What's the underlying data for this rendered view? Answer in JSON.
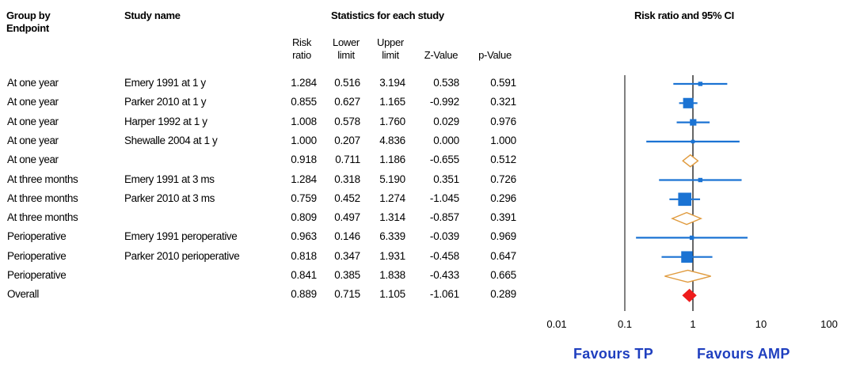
{
  "headers": {
    "group_line1": "Group by",
    "group_line2": "Endpoint",
    "study": "Study name",
    "stats": "Statistics for each study",
    "plot": "Risk ratio and 95% CI"
  },
  "subheaders": {
    "rr1": "Risk",
    "rr2": "ratio",
    "ll1": "Lower",
    "ll2": "limit",
    "ul1": "Upper",
    "ul2": "limit",
    "z": "Z-Value",
    "p": "p-Value"
  },
  "rows": [
    {
      "group": "At one year",
      "study": "Emery 1991 at 1 y",
      "rr": "1.284",
      "lower": "0.516",
      "upper": "3.194",
      "z": "0.538",
      "p": "0.591"
    },
    {
      "group": "At one year",
      "study": "Parker 2010 at 1 y",
      "rr": "0.855",
      "lower": "0.627",
      "upper": "1.165",
      "z": "-0.992",
      "p": "0.321"
    },
    {
      "group": "At one year",
      "study": "Harper 1992 at 1 y",
      "rr": "1.008",
      "lower": "0.578",
      "upper": "1.760",
      "z": "0.029",
      "p": "0.976"
    },
    {
      "group": "At one year",
      "study": "Shewalle 2004 at 1 y",
      "rr": "1.000",
      "lower": "0.207",
      "upper": "4.836",
      "z": "0.000",
      "p": "1.000"
    },
    {
      "group": "At one year",
      "study": "",
      "rr": "0.918",
      "lower": "0.711",
      "upper": "1.186",
      "z": "-0.655",
      "p": "0.512"
    },
    {
      "group": "At three months",
      "study": "Emery 1991 at 3 ms",
      "rr": "1.284",
      "lower": "0.318",
      "upper": "5.190",
      "z": "0.351",
      "p": "0.726"
    },
    {
      "group": "At three months",
      "study": "Parker 2010 at 3 ms",
      "rr": "0.759",
      "lower": "0.452",
      "upper": "1.274",
      "z": "-1.045",
      "p": "0.296"
    },
    {
      "group": "At three months",
      "study": "",
      "rr": "0.809",
      "lower": "0.497",
      "upper": "1.314",
      "z": "-0.857",
      "p": "0.391"
    },
    {
      "group": "Perioperative",
      "study": "Emery 1991 peroperative",
      "rr": "0.963",
      "lower": "0.146",
      "upper": "6.339",
      "z": "-0.039",
      "p": "0.969"
    },
    {
      "group": "Perioperative",
      "study": "Parker 2010 perioperative",
      "rr": "0.818",
      "lower": "0.347",
      "upper": "1.931",
      "z": "-0.458",
      "p": "0.647"
    },
    {
      "group": "Perioperative",
      "study": "",
      "rr": "0.841",
      "lower": "0.385",
      "upper": "1.838",
      "z": "-0.433",
      "p": "0.665"
    },
    {
      "group": "Overall",
      "study": "",
      "rr": "0.889",
      "lower": "0.715",
      "upper": "1.105",
      "z": "-1.061",
      "p": "0.289"
    }
  ],
  "chart_data": {
    "type": "scatter",
    "subtype": "forest-plot",
    "title": "Risk ratio and 95% CI",
    "x_scale": "log",
    "xlim": [
      0.01,
      100
    ],
    "xticks": [
      0.01,
      0.1,
      1,
      10,
      100
    ],
    "xtick_labels": [
      "0.01",
      "0.1",
      "1",
      "10",
      "100"
    ],
    "reference_line": 1,
    "points": [
      {
        "kind": "study",
        "rr": 1.284,
        "lower": 0.516,
        "upper": 3.194,
        "weight": 0.1
      },
      {
        "kind": "study",
        "rr": 0.855,
        "lower": 0.627,
        "upper": 1.165,
        "weight": 0.65
      },
      {
        "kind": "study",
        "rr": 1.008,
        "lower": 0.578,
        "upper": 1.76,
        "weight": 0.3
      },
      {
        "kind": "study",
        "rr": 1.0,
        "lower": 0.207,
        "upper": 4.836,
        "weight": 0.04
      },
      {
        "kind": "subtotal",
        "rr": 0.918,
        "lower": 0.711,
        "upper": 1.186
      },
      {
        "kind": "study",
        "rr": 1.284,
        "lower": 0.318,
        "upper": 5.19,
        "weight": 0.1
      },
      {
        "kind": "study",
        "rr": 0.759,
        "lower": 0.452,
        "upper": 1.274,
        "weight": 0.9
      },
      {
        "kind": "subtotal",
        "rr": 0.809,
        "lower": 0.497,
        "upper": 1.314
      },
      {
        "kind": "study",
        "rr": 0.963,
        "lower": 0.146,
        "upper": 6.339,
        "weight": 0.1
      },
      {
        "kind": "study",
        "rr": 0.818,
        "lower": 0.347,
        "upper": 1.931,
        "weight": 0.75
      },
      {
        "kind": "subtotal",
        "rr": 0.841,
        "lower": 0.385,
        "upper": 1.838
      },
      {
        "kind": "overall",
        "rr": 0.889,
        "lower": 0.715,
        "upper": 1.105
      }
    ],
    "favours_left": "Favours TP",
    "favours_right": "Favours AMP",
    "colors": {
      "study": "#1b73d3",
      "subtotal": "#e09a3c",
      "overall": "#ee1c1c",
      "axis": "#000000"
    }
  }
}
